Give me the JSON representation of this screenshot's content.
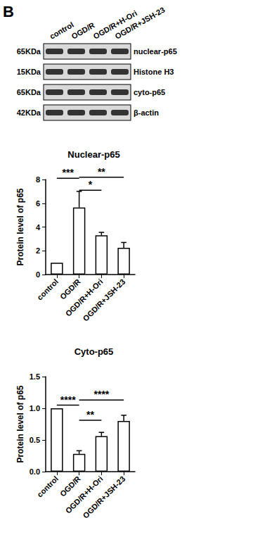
{
  "panel": {
    "label": "B",
    "lanes": [
      "control",
      "OGD/R",
      "OGD/R+H-Ori",
      "OGD/R+JSH-23"
    ],
    "rows": [
      {
        "mw": "65KDa",
        "name": "nuclear-p65"
      },
      {
        "mw": "15KDa",
        "name": "Histone H3"
      },
      {
        "mw": "65KDa",
        "name": "cyto-p65"
      },
      {
        "mw": "42KDa",
        "name": "β-actin"
      }
    ]
  },
  "chart_data": [
    {
      "type": "bar",
      "title": "Nuclear-p65",
      "y_label": "Protein level of p65",
      "categories": [
        "control",
        "OGD/R",
        "OGD/R+H-Ori",
        "OGD/R+JSH-23"
      ],
      "values": [
        1.0,
        5.65,
        3.3,
        2.25
      ],
      "errors": [
        0,
        1.35,
        0.25,
        0.45
      ],
      "color": "#ffffff",
      "ylim": [
        0,
        8
      ],
      "yticks": [
        0,
        2,
        4,
        6,
        8
      ],
      "grid": false,
      "annotations": [
        {
          "from": 0,
          "to": 1,
          "y": 8.1,
          "text": "***"
        },
        {
          "from": 1,
          "to": 2,
          "y": 7.1,
          "text": "*"
        },
        {
          "from": 1,
          "to": 3,
          "y": 8.2,
          "text": "**"
        }
      ]
    },
    {
      "type": "bar",
      "title": "Cyto-p65",
      "y_label": "Protein level of p65",
      "categories": [
        "control",
        "OGD/R",
        "OGD/R+H-Ori",
        "OGD/R+JSH-23"
      ],
      "values": [
        1.0,
        0.28,
        0.56,
        0.8
      ],
      "errors": [
        0,
        0.05,
        0.06,
        0.09
      ],
      "color": "#ffffff",
      "ylim": [
        0,
        1.5
      ],
      "yticks": [
        {
          "value": 0,
          "label": "0.0"
        },
        0.5,
        {
          "value": 1,
          "label": "1.0"
        },
        1.5
      ],
      "grid": false,
      "annotations": [
        {
          "from": 0,
          "to": 1,
          "y": 1.05,
          "text": "****"
        },
        {
          "from": 1,
          "to": 2,
          "y": 0.81,
          "text": "**"
        },
        {
          "from": 1,
          "to": 3,
          "y": 1.13,
          "text": "****"
        }
      ]
    }
  ]
}
